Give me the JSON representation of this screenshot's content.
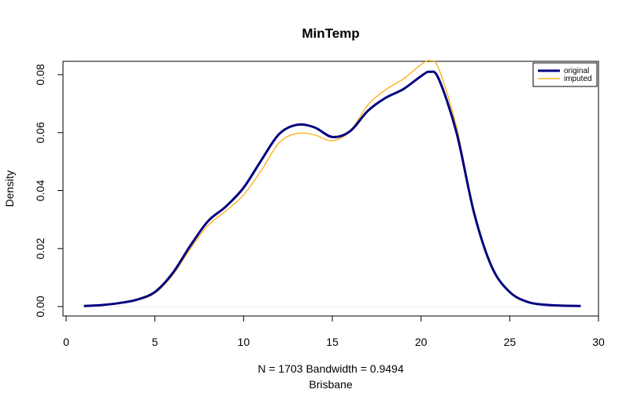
{
  "chart_data": {
    "type": "line",
    "title": "MinTemp",
    "ylabel": "Density",
    "xlabel": "N = 1703   Bandwidth = 0.9494",
    "subtitle": "Brisbane",
    "xlim": [
      0,
      30
    ],
    "ylim": [
      0,
      0.085
    ],
    "xticks": [
      "0",
      "5",
      "10",
      "15",
      "20",
      "25",
      "30"
    ],
    "yticks": [
      "0.00",
      "0.02",
      "0.04",
      "0.06",
      "0.08"
    ],
    "legend": {
      "position": "top-right",
      "entries": [
        "original",
        "imputed"
      ]
    },
    "series": [
      {
        "name": "original",
        "color": "#000080",
        "x": [
          1,
          2,
          3,
          4,
          5,
          6,
          7,
          8,
          9,
          10,
          11,
          12,
          13,
          14,
          15,
          16,
          17,
          18,
          19,
          20,
          20.5,
          21,
          22,
          23,
          24,
          25,
          26,
          27,
          28,
          29
        ],
        "y": [
          0.0002,
          0.0005,
          0.0012,
          0.0024,
          0.005,
          0.0115,
          0.021,
          0.0295,
          0.0345,
          0.041,
          0.0505,
          0.0595,
          0.0627,
          0.0618,
          0.0585,
          0.0605,
          0.0675,
          0.072,
          0.075,
          0.0795,
          0.081,
          0.0785,
          0.06,
          0.032,
          0.0135,
          0.005,
          0.0016,
          0.0006,
          0.0003,
          0.0002
        ]
      },
      {
        "name": "imputed",
        "color": "#FFA500",
        "x": [
          1,
          2,
          3,
          4,
          5,
          6,
          7,
          8,
          9,
          10,
          11,
          12,
          13,
          14,
          15,
          16,
          17,
          18,
          19,
          20,
          20.5,
          21,
          22,
          23,
          24,
          25,
          26,
          27,
          28,
          29
        ],
        "y": [
          0.0002,
          0.0005,
          0.0011,
          0.0022,
          0.0046,
          0.0108,
          0.02,
          0.028,
          0.033,
          0.0385,
          0.047,
          0.0565,
          0.0597,
          0.0592,
          0.0572,
          0.0605,
          0.0695,
          0.0748,
          0.0785,
          0.0835,
          0.0848,
          0.082,
          0.062,
          0.0325,
          0.0135,
          0.0048,
          0.0015,
          0.0006,
          0.0003,
          0.0002
        ]
      }
    ]
  }
}
